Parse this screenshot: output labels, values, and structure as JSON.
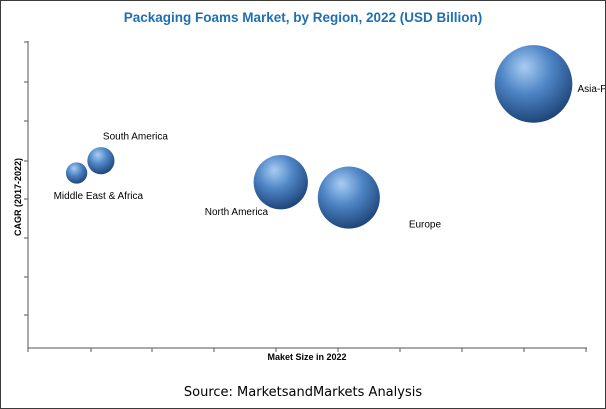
{
  "source": "Source: MarketsandMarkets Analysis",
  "chart_data": {
    "type": "scatter",
    "title": "Packaging Foams Market, by Region, 2022 (USD Billion)",
    "xlabel": "Maket Size in 2022",
    "ylabel": "CAGR (2017-2022)",
    "grid": false,
    "points": [
      {
        "label": "Middle East & Africa",
        "x": 1.0,
        "y": 5.7,
        "size": 11
      },
      {
        "label": "South America",
        "x": 1.5,
        "y": 6.1,
        "size": 14
      },
      {
        "label": "North America",
        "x": 5.2,
        "y": 5.4,
        "size": 28
      },
      {
        "label": "Europe",
        "x": 6.6,
        "y": 4.9,
        "size": 32
      },
      {
        "label": "Asia-Pacific",
        "x": 10.4,
        "y": 8.6,
        "size": 40
      }
    ],
    "colors": {
      "bubble_light": "#a9cdf2",
      "bubble_mid": "#4f86c6",
      "bubble_dark": "#1a3f73",
      "title": "#1f6fb2"
    }
  }
}
